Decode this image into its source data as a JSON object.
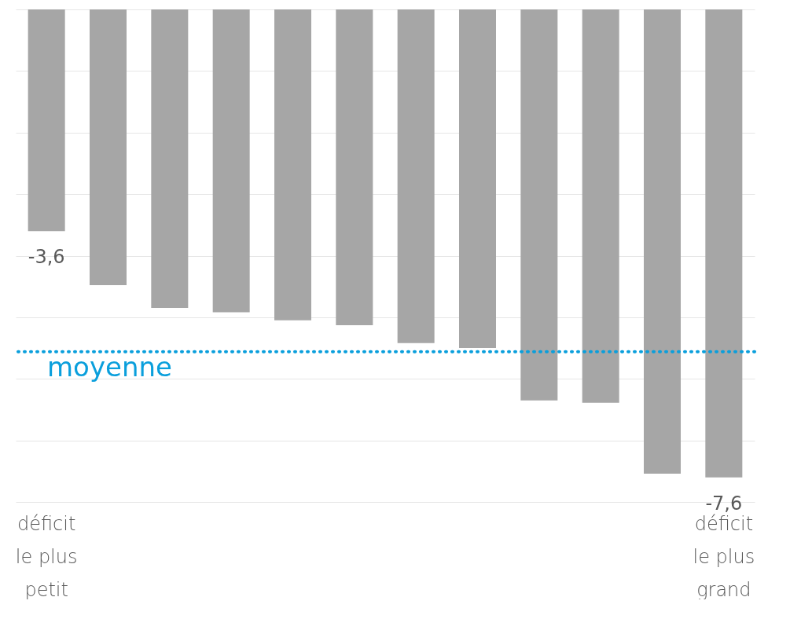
{
  "chart_data": {
    "type": "bar",
    "categories": [
      "déficit\nle plus\npetit",
      null,
      null,
      null,
      null,
      null,
      null,
      null,
      null,
      null,
      null,
      "déficit\nle plus\ngrand"
    ],
    "values": [
      -3.6,
      -4.48,
      -4.85,
      -4.92,
      -5.05,
      -5.13,
      -5.42,
      -5.5,
      -6.35,
      -6.39,
      -7.54,
      -7.6
    ],
    "value_labels": [
      "-3,6",
      null,
      null,
      null,
      null,
      null,
      null,
      null,
      null,
      null,
      null,
      "-7,6"
    ],
    "color": "#a6a6a6",
    "ylim": [
      -8,
      0
    ],
    "yticks": [
      {
        "value": 0,
        "label": null
      },
      {
        "value": -1,
        "label": null
      },
      {
        "value": -2,
        "label": null
      },
      {
        "value": -3,
        "label": null
      },
      {
        "value": -4,
        "label": null
      },
      {
        "value": -5,
        "label": null
      },
      {
        "value": -6,
        "label": null
      },
      {
        "value": -7,
        "label": null
      },
      {
        "value": -8,
        "label": null
      }
    ],
    "tick_labels": "x",
    "grid": "y",
    "ref_lines": [
      {
        "axis": "y",
        "value": -5.56,
        "label": "moyenne",
        "color": "#0a9fdc",
        "line_style": "dotted"
      }
    ]
  }
}
